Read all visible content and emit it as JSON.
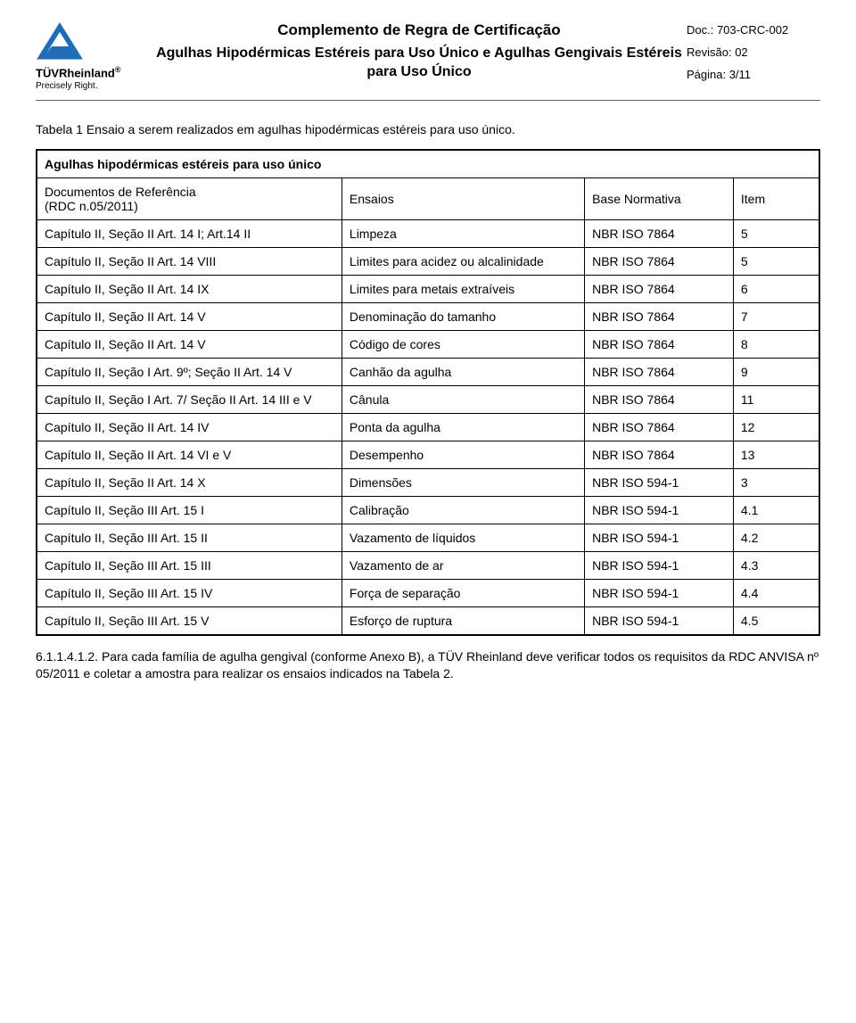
{
  "header": {
    "logo_brand_top": "TÜV",
    "logo_brand_bottom": "Rheinland",
    "logo_reg": "®",
    "logo_tagline": "Precisely Right.",
    "title_top": "Complemento de Regra de Certificação",
    "title_main": "Agulhas Hipodérmicas Estéreis para Uso Único e Agulhas Gengivais Estéreis para Uso Único",
    "doc_no": "Doc.: 703-CRC-002",
    "revision": "Revisão: 02",
    "page": "Página: 3/11"
  },
  "table": {
    "caption": "Tabela 1 Ensaio a serem realizados em agulhas hipodérmicas estéreis para uso único.",
    "banner": "Agulhas hipodérmicas estéreis para uso único",
    "headers": {
      "doc_label_line1": "Documentos de Referência",
      "doc_label_line2": "(RDC n.05/2011)",
      "ensaios": "Ensaios",
      "base": "Base Normativa",
      "item": "Item"
    },
    "rows": [
      {
        "doc": "Capítulo II, Seção II Art. 14 I; Art.14 II",
        "ensaio": "Limpeza",
        "base": "NBR ISO 7864",
        "item": "5"
      },
      {
        "doc": "Capítulo II, Seção II Art. 14 VIII",
        "ensaio": "Limites para acidez ou alcalinidade",
        "base": "NBR ISO 7864",
        "item": "5"
      },
      {
        "doc": "Capítulo II, Seção II Art. 14 IX",
        "ensaio": "Limites para metais extraíveis",
        "base": "NBR ISO 7864",
        "item": "6"
      },
      {
        "doc": "Capítulo II, Seção II Art. 14 V",
        "ensaio": "Denominação do tamanho",
        "base": "NBR ISO 7864",
        "item": "7"
      },
      {
        "doc": "Capítulo II, Seção II Art. 14 V",
        "ensaio": "Código de cores",
        "base": "NBR ISO 7864",
        "item": "8"
      },
      {
        "doc": "Capítulo II, Seção I Art. 9º; Seção II Art. 14 V",
        "ensaio": "Canhão da agulha",
        "base": "NBR ISO 7864",
        "item": "9"
      },
      {
        "doc": "Capítulo II, Seção I Art. 7/ Seção II Art. 14 III e V",
        "ensaio": "Cânula",
        "base": "NBR ISO 7864",
        "item": "11"
      },
      {
        "doc": "Capítulo II, Seção II Art. 14 IV",
        "ensaio": "Ponta da agulha",
        "base": "NBR ISO 7864",
        "item": "12"
      },
      {
        "doc": "Capítulo II, Seção II Art. 14 VI e V",
        "ensaio": "Desempenho",
        "base": "NBR ISO 7864",
        "item": "13"
      },
      {
        "doc": "Capítulo II, Seção II Art. 14 X",
        "ensaio": "Dimensões",
        "base": "NBR ISO 594-1",
        "item": "3"
      },
      {
        "doc": "Capítulo II, Seção III Art. 15 I",
        "ensaio": "Calibração",
        "base": "NBR ISO 594-1",
        "item": "4.1"
      },
      {
        "doc": "Capítulo II, Seção III Art. 15 II",
        "ensaio": "Vazamento de líquidos",
        "base": "NBR ISO 594-1",
        "item": "4.2"
      },
      {
        "doc": "Capítulo II, Seção III Art. 15 III",
        "ensaio": "Vazamento de ar",
        "base": "NBR ISO 594-1",
        "item": "4.3"
      },
      {
        "doc": "Capítulo II, Seção III Art. 15 IV",
        "ensaio": "Força de separação",
        "base": "NBR ISO 594-1",
        "item": "4.4"
      },
      {
        "doc": "Capítulo II, Seção III Art. 15 V",
        "ensaio": "Esforço de ruptura",
        "base": "NBR ISO 594-1",
        "item": "4.5"
      }
    ]
  },
  "bottom_para": "6.1.1.4.1.2. Para cada família de agulha gengival (conforme Anexo B), a TÜV Rheinland deve verificar todos os requisitos da RDC ANVISA nº 05/2011 e coletar a amostra para realizar os ensaios indicados na Tabela 2."
}
